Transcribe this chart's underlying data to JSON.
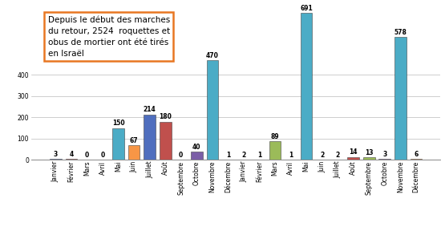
{
  "categories": [
    "Janvier",
    "Février",
    "Mars",
    "Avril",
    "Mai",
    "Juin",
    "Juillet",
    "Août",
    "Septembre",
    "Octobre",
    "Novembre",
    "Décembre",
    "Janvier",
    "Février",
    "Mars",
    "Avril",
    "Mai",
    "Juin",
    "Juillet",
    "Août",
    "Septembre",
    "Octobre",
    "Novembre",
    "Décembre"
  ],
  "values": [
    3,
    4,
    0,
    0,
    150,
    67,
    214,
    180,
    0,
    40,
    470,
    1,
    2,
    1,
    89,
    1,
    691,
    2,
    2,
    14,
    13,
    3,
    578,
    6
  ],
  "bar_colors": [
    "#4F6EBE",
    "#C0504D",
    "#9BBB59",
    "#8064A2",
    "#4BACC6",
    "#F79646",
    "#4F6EBE",
    "#C0504D",
    "#9BBB59",
    "#7B5EA7",
    "#4BACC6",
    "#F79646",
    "#4F6EBE",
    "#C0504D",
    "#9BBB59",
    "#8064A2",
    "#4BACC6",
    "#F79646",
    "#4F6EBE",
    "#C0504D",
    "#9BBB59",
    "#8064A2",
    "#4BACC6",
    "#F79646"
  ],
  "annotation_box": "Depuis le début des marches\ndu retour, 2524  roquettes et\nobus de mortier ont été tirés\nen Israël",
  "ylim": [
    0,
    730
  ],
  "yticks": [
    0,
    100,
    200,
    300,
    400
  ],
  "background_color": "#FFFFFF",
  "grid_color": "#BBBBBB",
  "bar_edge_color": "#444444",
  "value_fontsize": 5.5,
  "tick_fontsize": 5.5,
  "annotation_fontsize": 7.5
}
